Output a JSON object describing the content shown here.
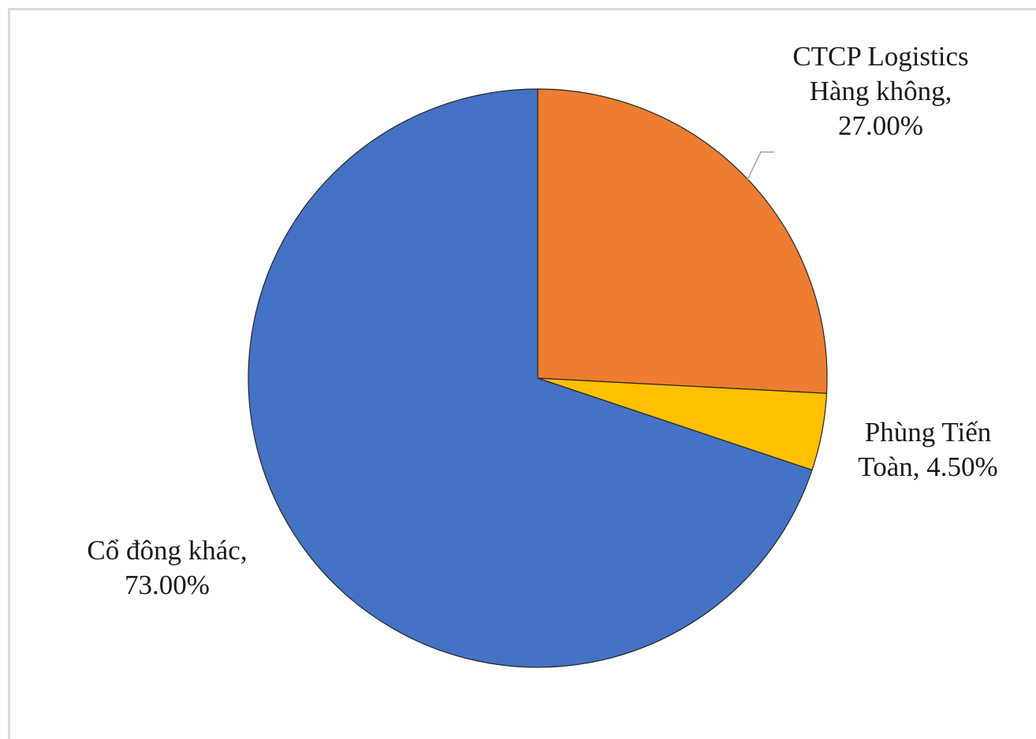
{
  "chart_data": {
    "type": "pie",
    "title": "",
    "slices": [
      {
        "label_lines": [
          "CTCP Logistics",
          "Hàng không,",
          "27.00%"
        ],
        "name": "CTCP Logistics Hàng không",
        "value": 27.0,
        "color": "#ED7D31"
      },
      {
        "label_lines": [
          "Phùng Tiến",
          "Toàn, 4.50%"
        ],
        "name": "Phùng Tiến Toàn",
        "value": 4.5,
        "color": "#FFC000"
      },
      {
        "label_lines": [
          "Cổ đông khác,",
          "73.00%"
        ],
        "name": "Cổ đông khác",
        "value": 73.0,
        "color": "#4472C4"
      }
    ],
    "legend": "none",
    "data_labels": "outside"
  }
}
